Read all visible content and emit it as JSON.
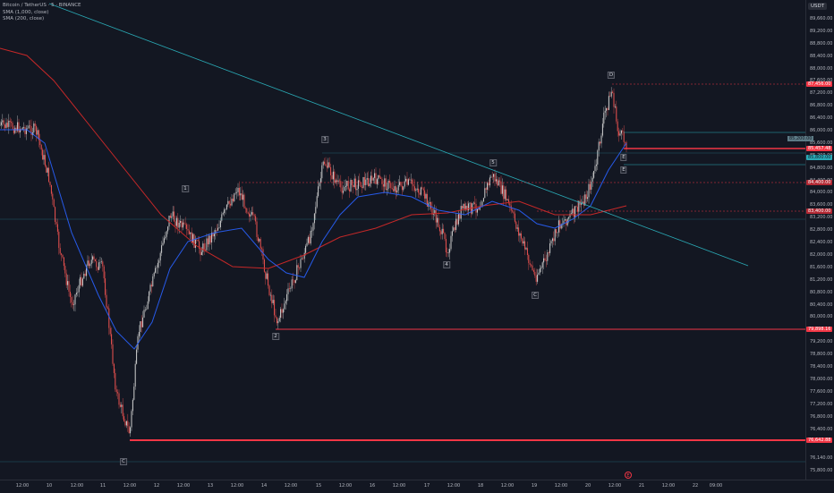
{
  "legend": {
    "symbol": "Bitcoin / TetherUS · 5 · BINANCE",
    "sma1": "SMA (1,000, close)",
    "sma2": "SMA (200, close)"
  },
  "currency": "USDT",
  "price_ticks": [
    "89,660.00",
    "89,200.00",
    "88,800.00",
    "88,400.00",
    "88,000.00",
    "87,600.00",
    "87,200.00",
    "86,800.00",
    "86,400.00",
    "86,000.00",
    "85,600.00",
    "85,200.00",
    "84,800.00",
    "84,400.00",
    "84,000.00",
    "83,600.00",
    "83,200.00",
    "82,800.00",
    "82,400.00",
    "82,000.00",
    "81,600.00",
    "81,200.00",
    "80,800.00",
    "80,400.00",
    "80,000.00",
    "79,600.00",
    "79,200.00",
    "78,800.00",
    "78,400.00",
    "78,000.00",
    "77,600.00",
    "77,200.00",
    "76,800.00",
    "76,400.00",
    "76,140.00",
    "75,800.00"
  ],
  "price_labels": {
    "top": "87,456.00",
    "current": "85,457.48",
    "mid1": "85,200.00",
    "mid2": "84,400.00",
    "mid3": "83,400.00",
    "low1": "79,898.16",
    "low2": "76,642.88",
    "cyan": "85,800.00"
  },
  "time_ticks": [
    "12:00",
    "10",
    "12:00",
    "11",
    "12:00",
    "12",
    "12:00",
    "13",
    "12:00",
    "14",
    "12:00",
    "15",
    "12:00",
    "16",
    "12:00",
    "17",
    "12:00",
    "18",
    "12:00",
    "19",
    "12:00",
    "20",
    "12:00",
    "21",
    "12:00",
    "22",
    "09:00"
  ],
  "wave_labels": [
    "1",
    "2",
    "3",
    "4",
    "5",
    "A",
    "B",
    "C",
    "D",
    "E",
    "E",
    "C"
  ],
  "event_icon": "E",
  "colors": {
    "background": "#131722",
    "sma1000": "#f23645",
    "sma200": "#2962ff",
    "trendline": "#2aa9b5",
    "support": "#f23645",
    "candle_up": "#cfcfcf",
    "candle_down": "#ef5350"
  }
}
